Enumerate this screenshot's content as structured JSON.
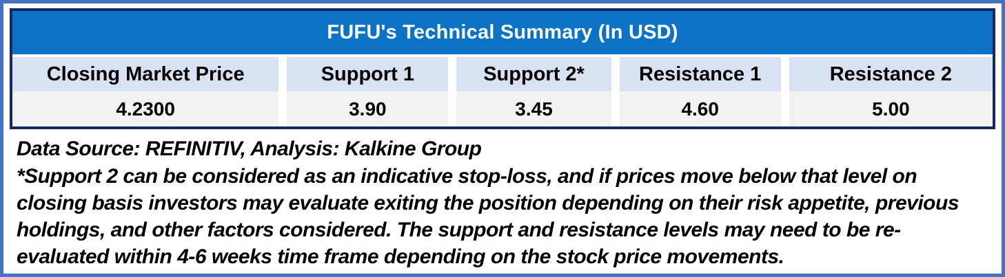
{
  "table": {
    "title": "FUFU's Technical Summary (In USD)",
    "columns": [
      {
        "label": "Closing Market Price",
        "value": "4.2300"
      },
      {
        "label": "Support 1",
        "value": "3.90"
      },
      {
        "label": "Support 2*",
        "value": "3.45"
      },
      {
        "label": "Resistance 1",
        "value": "4.60"
      },
      {
        "label": "Resistance 2",
        "value": "5.00"
      }
    ]
  },
  "notes": {
    "data_source": "Data Source: REFINITIV, Analysis: Kalkine Group",
    "disclaimer": "*Support 2 can be considered as an indicative stop-loss, and if prices move below that level on closing basis investors may evaluate exiting the position depending on their risk appetite, previous holdings, and other factors considered. The support and resistance levels may need to be re-evaluated within 4-6 weeks time frame depending on the stock price movements."
  },
  "colors": {
    "frame_border": "#4472c4",
    "table_border": "#17295e",
    "title_bg": "#0b72c4",
    "title_fg": "#ffffff",
    "header_bg": "#d9e2f3",
    "value_bg": "#f2f2f2",
    "text": "#000000"
  },
  "chart_data": {
    "type": "table",
    "title": "FUFU's Technical Summary (In USD)",
    "columns": [
      "Closing Market Price",
      "Support 1",
      "Support 2*",
      "Resistance 1",
      "Resistance 2"
    ],
    "rows": [
      [
        4.23,
        3.9,
        3.45,
        4.6,
        5.0
      ]
    ],
    "notes": [
      "Data Source: REFINITIV, Analysis: Kalkine Group",
      "*Support 2 can be considered as an indicative stop-loss, and if prices move below that level on closing basis investors may evaluate exiting the position depending on their risk appetite, previous holdings, and other factors considered. The support and resistance levels may need to be re-evaluated within 4-6 weeks time frame depending on the stock price movements."
    ]
  }
}
